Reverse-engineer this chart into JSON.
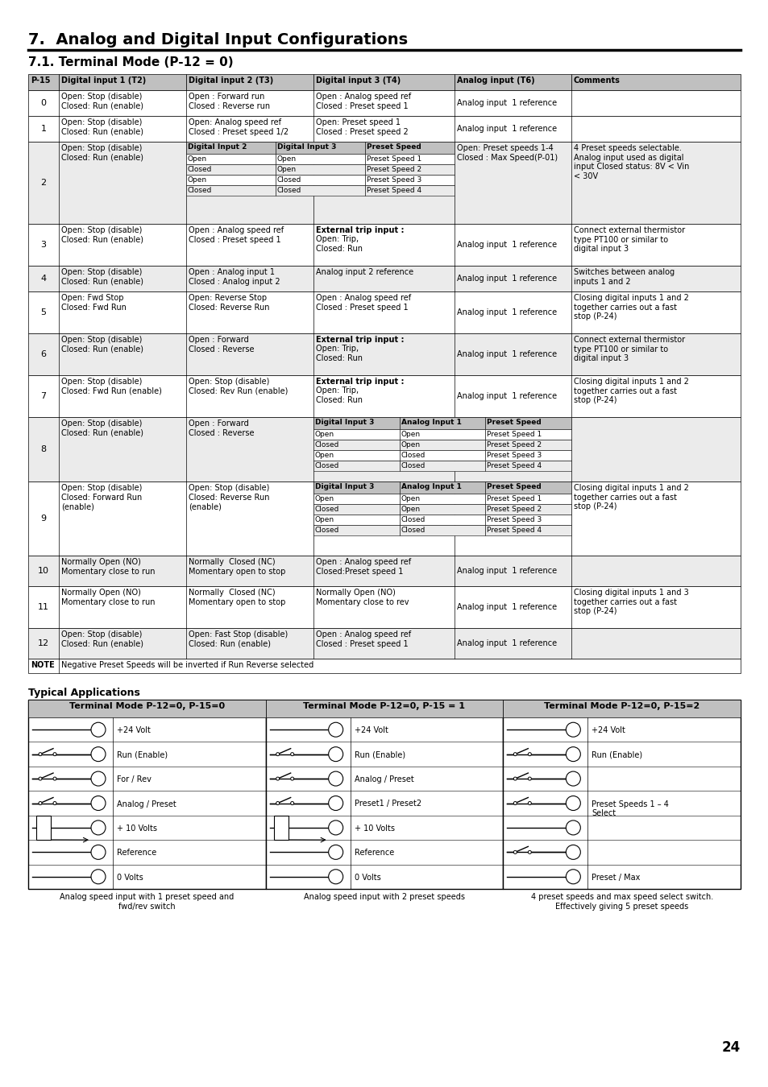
{
  "title": "7.  Analog and Digital Input Configurations",
  "subtitle": "7.1. Terminal Mode (P-12 = 0)",
  "page_number": "24",
  "col_headers": [
    "P-15",
    "Digital input 1 (T2)",
    "Digital input 2 (T3)",
    "Digital input 3 (T4)",
    "Analog input (T6)",
    "Comments"
  ],
  "rows": [
    {
      "p15": "0",
      "shaded": false,
      "type": "normal",
      "d1": "Open: Stop (disable)\nClosed: Run (enable)",
      "d2": "Open : Forward run\nClosed : Reverse run",
      "d3": "Open : Analog speed ref\nClosed : Preset speed 1",
      "analog": "Analog input  1 reference",
      "comments": ""
    },
    {
      "p15": "1",
      "shaded": false,
      "type": "normal",
      "d1": "Open: Stop (disable)\nClosed: Run (enable)",
      "d2": "Open: Analog speed ref\nClosed : Preset speed 1/2",
      "d3": "Open: Preset speed 1\nClosed : Preset speed 2",
      "analog": "Analog input  1 reference",
      "comments": ""
    },
    {
      "p15": "2",
      "shaded": true,
      "type": "subtable",
      "d1": "Open: Stop (disable)\nClosed: Run (enable)",
      "sub_headers": [
        "Digital Input 2",
        "Digital Input 3",
        "Preset Speed"
      ],
      "sub_rows": [
        [
          "Open",
          "Open",
          "Preset Speed 1"
        ],
        [
          "Closed",
          "Open",
          "Preset Speed 2"
        ],
        [
          "Open",
          "Closed",
          "Preset Speed 3"
        ],
        [
          "Closed",
          "Closed",
          "Preset Speed 4"
        ]
      ],
      "analog": "Open: Preset speeds 1-4\nClosed : Max Speed(P-01)",
      "comments": "4 Preset speeds selectable.\nAnalog input used as digital\ninput Closed status: 8V < Vin\n< 30V"
    },
    {
      "p15": "3",
      "shaded": false,
      "type": "bold_d3",
      "d1": "Open: Stop (disable)\nClosed: Run (enable)",
      "d2": "Open : Analog speed ref\nClosed : Preset speed 1",
      "d3_bold": "External trip input :",
      "d3": "Open: Trip,\nClosed: Run",
      "analog": "Analog input  1 reference",
      "comments": "Connect external thermistor\ntype PT100 or similar to\ndigital input 3"
    },
    {
      "p15": "4",
      "shaded": true,
      "type": "normal",
      "d1": "Open: Stop (disable)\nClosed: Run (enable)",
      "d2": "Open : Analog input 1\nClosed : Analog input 2",
      "d3": "Analog input 2 reference",
      "analog": "Analog input  1 reference",
      "comments": "Switches between analog\ninputs 1 and 2"
    },
    {
      "p15": "5",
      "shaded": false,
      "type": "normal",
      "d1": "Open: Fwd Stop\nClosed: Fwd Run",
      "d2": "Open: Reverse Stop\nClosed: Reverse Run",
      "d3": "Open : Analog speed ref\nClosed : Preset speed 1",
      "analog": "Analog input  1 reference",
      "comments": "Closing digital inputs 1 and 2\ntogether carries out a fast\nstop (P-24)"
    },
    {
      "p15": "6",
      "shaded": true,
      "type": "bold_d3",
      "d1": "Open: Stop (disable)\nClosed: Run (enable)",
      "d2": "Open : Forward\nClosed : Reverse",
      "d3_bold": "External trip input :",
      "d3": "Open: Trip,\nClosed: Run",
      "analog": "Analog input  1 reference",
      "comments": "Connect external thermistor\ntype PT100 or similar to\ndigital input 3"
    },
    {
      "p15": "7",
      "shaded": false,
      "type": "bold_d3",
      "d1": "Open: Stop (disable)\nClosed: Fwd Run (enable)",
      "d2": "Open: Stop (disable)\nClosed: Rev Run (enable)",
      "d3_bold": "External trip input :",
      "d3": "Open: Trip,\nClosed: Run",
      "analog": "Analog input  1 reference",
      "comments": "Closing digital inputs 1 and 2\ntogether carries out a fast\nstop (P-24)"
    },
    {
      "p15": "8",
      "shaded": true,
      "type": "subtable_d3",
      "d1": "Open: Stop (disable)\nClosed: Run (enable)",
      "d2": "Open : Forward\nClosed : Reverse",
      "sub_headers": [
        "Digital Input 3",
        "Analog Input 1",
        "Preset Speed"
      ],
      "sub_rows": [
        [
          "Open",
          "Open",
          "Preset Speed 1"
        ],
        [
          "Closed",
          "Open",
          "Preset Speed 2"
        ],
        [
          "Open",
          "Closed",
          "Preset Speed 3"
        ],
        [
          "Closed",
          "Closed",
          "Preset Speed 4"
        ]
      ],
      "comments": ""
    },
    {
      "p15": "9",
      "shaded": false,
      "type": "subtable_d3",
      "d1": "Open: Stop (disable)\nClosed: Forward Run\n(enable)",
      "d2": "Open: Stop (disable)\nClosed: Reverse Run\n(enable)",
      "sub_headers": [
        "Digital Input 3",
        "Analog Input 1",
        "Preset Speed"
      ],
      "sub_rows": [
        [
          "Open",
          "Open",
          "Preset Speed 1"
        ],
        [
          "Closed",
          "Open",
          "Preset Speed 2"
        ],
        [
          "Open",
          "Closed",
          "Preset Speed 3"
        ],
        [
          "Closed",
          "Closed",
          "Preset Speed 4"
        ]
      ],
      "comments": "Closing digital inputs 1 and 2\ntogether carries out a fast\nstop (P-24)"
    },
    {
      "p15": "10",
      "shaded": true,
      "type": "normal",
      "d1": "Normally Open (NO)\nMomentary close to run",
      "d2": "Normally  Closed (NC)\nMomentary open to stop",
      "d3": "Open : Analog speed ref\nClosed:Preset speed 1",
      "analog": "Analog input  1 reference",
      "comments": ""
    },
    {
      "p15": "11",
      "shaded": false,
      "type": "normal",
      "d1": "Normally Open (NO)\nMomentary close to run",
      "d2": "Normally  Closed (NC)\nMomentary open to stop",
      "d3": "Normally Open (NO)\nMomentary close to rev",
      "analog": "Analog input  1 reference",
      "comments": "Closing digital inputs 1 and 3\ntogether carries out a fast\nstop (P-24)"
    },
    {
      "p15": "12",
      "shaded": true,
      "type": "normal",
      "d1": "Open: Stop (disable)\nClosed: Run (enable)",
      "d2": "Open: Fast Stop (disable)\nClosed: Run (enable)",
      "d3": "Open : Analog speed ref\nClosed : Preset speed 1",
      "analog": "Analog input  1 reference",
      "comments": ""
    }
  ],
  "note": "Negative Preset Speeds will be inverted if Run Reverse selected",
  "typical_apps_title": "Typical Applications",
  "typical_sections": [
    {
      "title": "Terminal Mode P-12=0, P-15=0",
      "labels": [
        "+24 Volt",
        "Run (Enable)",
        "For / Rev",
        "Analog / Preset",
        "+ 10 Volts",
        "Reference",
        "0 Volts"
      ],
      "has_switch": [
        false,
        true,
        true,
        true,
        false,
        false,
        false
      ],
      "has_resistor": [
        false,
        false,
        false,
        false,
        true,
        false,
        false
      ]
    },
    {
      "title": "Terminal Mode P-12=0, P-15 = 1",
      "labels": [
        "+24 Volt",
        "Run (Enable)",
        "Analog / Preset",
        "Preset1 / Preset2",
        "+ 10 Volts",
        "Reference",
        "0 Volts"
      ],
      "has_switch": [
        false,
        true,
        true,
        true,
        false,
        false,
        false
      ],
      "has_resistor": [
        false,
        false,
        false,
        false,
        true,
        false,
        false
      ]
    },
    {
      "title": "Terminal Mode P-12=0, P-15=2",
      "labels": [
        "+24 Volt",
        "Run (Enable)",
        "",
        "Preset Speeds 1 – 4\nSelect",
        "",
        "",
        "Preset / Max"
      ],
      "has_switch": [
        false,
        true,
        true,
        true,
        false,
        true,
        false
      ],
      "has_resistor": [
        false,
        false,
        false,
        false,
        false,
        false,
        false
      ]
    }
  ],
  "typical_footers": [
    "Analog speed input with 1 preset speed and\nfwd/rev switch",
    "Analog speed input with 2 preset speeds",
    "4 preset speeds and max speed select switch.\nEffectively giving 5 preset speeds"
  ]
}
